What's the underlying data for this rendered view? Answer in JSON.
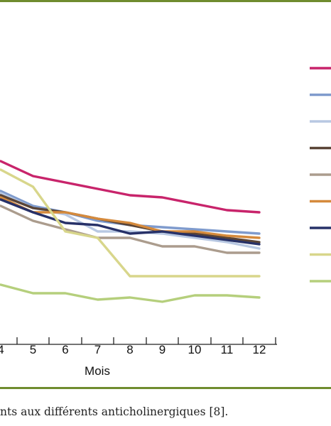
{
  "chart_data": {
    "type": "line",
    "x": [
      4,
      5,
      6,
      7,
      8,
      9,
      10,
      11,
      12
    ],
    "x_tick_labels": [
      "4",
      "5",
      "6",
      "7",
      "8",
      "9",
      "10",
      "11",
      "12"
    ],
    "xlabel": "Mois",
    "ylim": [
      0,
      100
    ],
    "grid": false,
    "legend": "right",
    "series": [
      {
        "color": "#c8246b",
        "values": [
          76,
          69,
          66,
          63,
          60,
          59,
          56,
          53,
          52
        ]
      },
      {
        "color": "#7f9bcd",
        "values": [
          62,
          55,
          52,
          48,
          46,
          45,
          44,
          43,
          42
        ]
      },
      {
        "color": "#b8c8e2",
        "values": [
          61,
          54,
          51,
          43,
          43,
          42,
          40,
          38,
          35
        ]
      },
      {
        "color": "#5a4436",
        "values": [
          60,
          54,
          52,
          49,
          46,
          43,
          42,
          40,
          38
        ]
      },
      {
        "color": "#ab9c8d",
        "values": [
          55,
          48,
          44,
          40,
          40,
          36,
          36,
          33,
          33
        ]
      },
      {
        "color": "#d58a3c",
        "values": [
          59,
          52,
          52,
          49,
          47,
          43,
          43,
          41,
          40
        ]
      },
      {
        "color": "#273168",
        "values": [
          58,
          52,
          47,
          46,
          42,
          43,
          41,
          39,
          37
        ]
      },
      {
        "color": "#d8d68b",
        "values": [
          72,
          64,
          43,
          40,
          22,
          22,
          22,
          22,
          22
        ]
      },
      {
        "color": "#b5cf7c",
        "values": [
          18,
          14,
          14,
          11,
          12,
          10,
          13,
          13,
          12
        ]
      }
    ]
  },
  "caption": "nts aux différents anticholinergiques [8]."
}
